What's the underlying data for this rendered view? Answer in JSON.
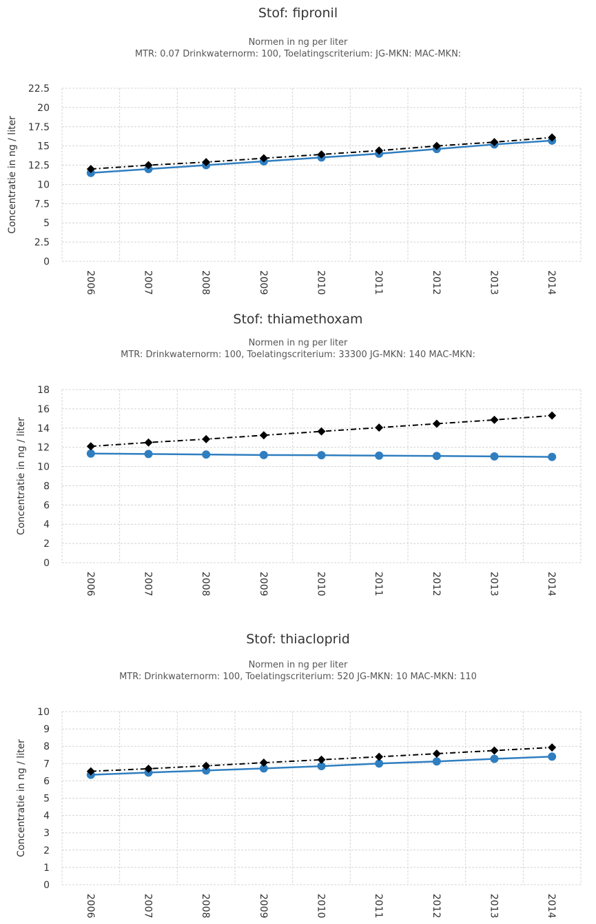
{
  "chart_data": [
    {
      "type": "line",
      "title": "Stof: fipronil",
      "subtitle_line1": "Normen in ng per liter",
      "subtitle_line2": "MTR: 0.07 Drinkwaternorm: 100, Toelatingscriterium: JG-MKN: MAC-MKN:",
      "ylabel": "Concentratie in ng / liter",
      "ylim": [
        0,
        22.5
      ],
      "yticks": [
        "0",
        "2.5",
        "5",
        "7.5",
        "10",
        "12.5",
        "15",
        "17.5",
        "20",
        "22.5"
      ],
      "categories": [
        "2006",
        "2007",
        "2008",
        "2009",
        "2010",
        "2011",
        "2012",
        "2013",
        "2014"
      ],
      "grid": true,
      "series": [
        {
          "style": "solid-circle",
          "color": "#2f7ec0",
          "values": [
            11.5,
            12.0,
            12.5,
            13.0,
            13.5,
            14.0,
            14.6,
            15.2,
            15.7
          ]
        },
        {
          "style": "dashdot-diamond",
          "color": "#000000",
          "values": [
            12.0,
            12.5,
            12.9,
            13.4,
            13.9,
            14.4,
            15.0,
            15.5,
            16.1
          ]
        }
      ]
    },
    {
      "type": "line",
      "title": "Stof: thiamethoxam",
      "subtitle_line1": "Normen in ng per liter",
      "subtitle_line2": "MTR: Drinkwaternorm: 100, Toelatingscriterium: 33300 JG-MKN: 140 MAC-MKN:",
      "ylabel": "Concentratie in ng / liter",
      "ylim": [
        0,
        18
      ],
      "yticks": [
        "0",
        "2",
        "4",
        "6",
        "8",
        "10",
        "12",
        "14",
        "16",
        "18"
      ],
      "categories": [
        "2006",
        "2007",
        "2008",
        "2009",
        "2010",
        "2011",
        "2012",
        "2013",
        "2014"
      ],
      "grid": true,
      "series": [
        {
          "style": "solid-circle",
          "color": "#2f7ec0",
          "values": [
            11.35,
            11.3,
            11.25,
            11.2,
            11.18,
            11.13,
            11.1,
            11.05,
            11.0
          ]
        },
        {
          "style": "dashdot-diamond",
          "color": "#000000",
          "values": [
            12.1,
            12.5,
            12.85,
            13.25,
            13.65,
            14.05,
            14.45,
            14.85,
            15.3
          ]
        }
      ]
    },
    {
      "type": "line",
      "title": "Stof: thiacloprid",
      "subtitle_line1": "Normen in ng per liter",
      "subtitle_line2": "MTR: Drinkwaternorm: 100, Toelatingscriterium: 520 JG-MKN: 10 MAC-MKN: 110",
      "ylabel": "Concentratie in ng / liter",
      "ylim": [
        0,
        10
      ],
      "yticks": [
        "0",
        "1",
        "2",
        "3",
        "4",
        "5",
        "6",
        "7",
        "8",
        "9",
        "10"
      ],
      "categories": [
        "2006",
        "2007",
        "2008",
        "2009",
        "2010",
        "2011",
        "2012",
        "2013",
        "2014"
      ],
      "grid": true,
      "series": [
        {
          "style": "solid-circle",
          "color": "#2f7ec0",
          "values": [
            6.35,
            6.48,
            6.6,
            6.72,
            6.85,
            7.0,
            7.12,
            7.27,
            7.4
          ]
        },
        {
          "style": "dashdot-diamond",
          "color": "#000000",
          "values": [
            6.55,
            6.7,
            6.87,
            7.05,
            7.22,
            7.39,
            7.57,
            7.75,
            7.93
          ]
        }
      ]
    }
  ]
}
